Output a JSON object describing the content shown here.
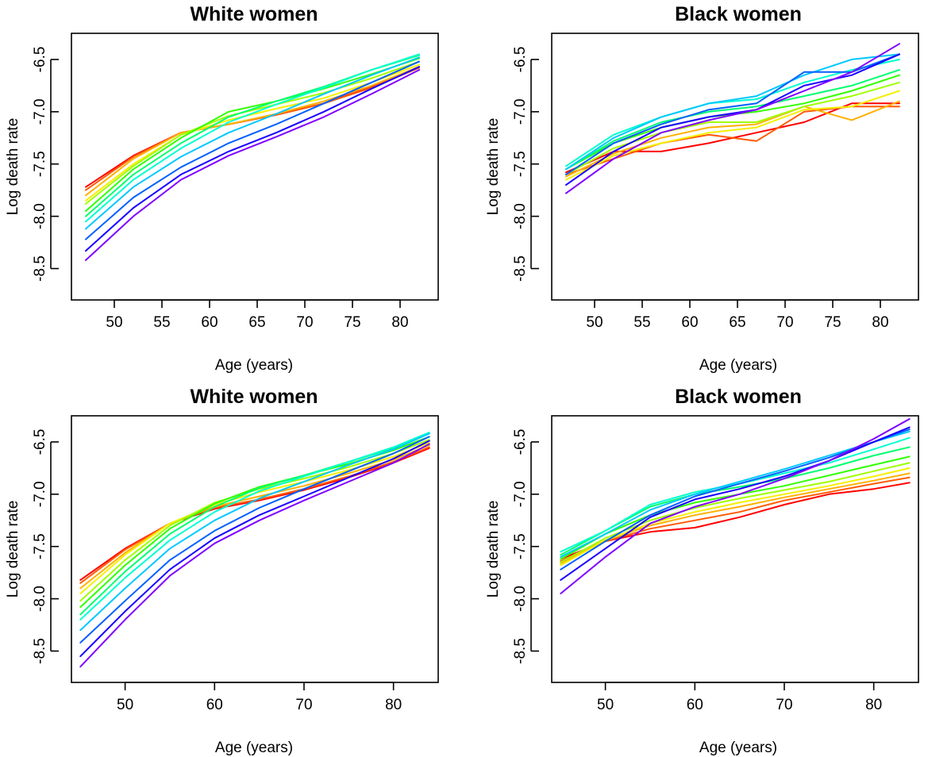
{
  "chart_data": [
    {
      "type": "line",
      "title": "White women",
      "xlabel": "Age (years)",
      "ylabel": "Log death rate",
      "xlim": [
        45.5,
        84
      ],
      "ylim": [
        -8.8,
        -6.25
      ],
      "xticks": [
        50,
        55,
        60,
        65,
        70,
        75,
        80
      ],
      "xtick_labels": [
        "50",
        "55",
        "60",
        "65",
        "70",
        "75",
        "80"
      ],
      "yticks": [
        -8.5,
        -8.0,
        -7.5,
        -7.0,
        -6.5
      ],
      "ytick_labels": [
        "-8.5",
        "-8.0",
        "-7.5",
        "-7.0",
        "-6.5"
      ],
      "grid": false,
      "colors": [
        "#ff0000",
        "#ff5a00",
        "#ffb000",
        "#f5f000",
        "#a0ff00",
        "#30ff00",
        "#00ff70",
        "#00ffd0",
        "#00c8ff",
        "#0060ff",
        "#1a00ff",
        "#8000ff"
      ],
      "x": [
        47,
        52,
        57,
        62,
        67,
        72,
        77,
        82
      ],
      "series": [
        {
          "values": [
            -7.72,
            -7.42,
            -7.2,
            -7.12,
            -7.03,
            -6.92,
            -6.76,
            -6.58
          ]
        },
        {
          "values": [
            -7.75,
            -7.43,
            -7.2,
            -7.12,
            -7.03,
            -6.92,
            -6.77,
            -6.58
          ]
        },
        {
          "values": [
            -7.8,
            -7.45,
            -7.2,
            -7.12,
            -7.02,
            -6.9,
            -6.75,
            -6.57
          ]
        },
        {
          "values": [
            -7.85,
            -7.5,
            -7.22,
            -7.08,
            -6.97,
            -6.87,
            -6.72,
            -6.55
          ]
        },
        {
          "values": [
            -7.88,
            -7.52,
            -7.22,
            -7.04,
            -6.93,
            -6.82,
            -6.68,
            -6.52
          ]
        },
        {
          "values": [
            -7.95,
            -7.55,
            -7.25,
            -7.0,
            -6.9,
            -6.78,
            -6.64,
            -6.49
          ]
        },
        {
          "values": [
            -8.0,
            -7.6,
            -7.3,
            -7.05,
            -6.9,
            -6.76,
            -6.6,
            -6.46
          ]
        },
        {
          "values": [
            -8.05,
            -7.65,
            -7.35,
            -7.1,
            -6.93,
            -6.77,
            -6.6,
            -6.45
          ]
        },
        {
          "values": [
            -8.12,
            -7.72,
            -7.43,
            -7.2,
            -7.02,
            -6.83,
            -6.65,
            -6.48
          ]
        },
        {
          "values": [
            -8.22,
            -7.82,
            -7.53,
            -7.3,
            -7.12,
            -6.92,
            -6.72,
            -6.52
          ]
        },
        {
          "values": [
            -8.33,
            -7.92,
            -7.6,
            -7.38,
            -7.2,
            -7.0,
            -6.78,
            -6.57
          ]
        },
        {
          "values": [
            -8.42,
            -8.0,
            -7.65,
            -7.42,
            -7.24,
            -7.05,
            -6.83,
            -6.6
          ]
        }
      ]
    },
    {
      "type": "line",
      "title": "Black women",
      "xlabel": "Age (years)",
      "ylabel": "Log death rate",
      "xlim": [
        45.5,
        84
      ],
      "ylim": [
        -8.8,
        -6.25
      ],
      "xticks": [
        50,
        55,
        60,
        65,
        70,
        75,
        80
      ],
      "xtick_labels": [
        "50",
        "55",
        "60",
        "65",
        "70",
        "75",
        "80"
      ],
      "yticks": [
        -8.5,
        -8.0,
        -7.5,
        -7.0,
        -6.5
      ],
      "ytick_labels": [
        "-8.5",
        "-8.0",
        "-7.5",
        "-7.0",
        "-6.5"
      ],
      "grid": false,
      "colors": [
        "#ff0000",
        "#ff5a00",
        "#ffb000",
        "#f5f000",
        "#a0ff00",
        "#30ff00",
        "#00ff70",
        "#00ffd0",
        "#00c8ff",
        "#0060ff",
        "#1a00ff",
        "#8000ff"
      ],
      "x": [
        47,
        52,
        57,
        62,
        67,
        72,
        77,
        82
      ],
      "series": [
        {
          "values": [
            -7.58,
            -7.38,
            -7.38,
            -7.3,
            -7.2,
            -7.1,
            -6.92,
            -6.92
          ]
        },
        {
          "values": [
            -7.6,
            -7.45,
            -7.3,
            -7.22,
            -7.28,
            -7.0,
            -6.95,
            -6.95
          ]
        },
        {
          "values": [
            -7.62,
            -7.4,
            -7.25,
            -7.15,
            -7.12,
            -6.95,
            -7.08,
            -6.9
          ]
        },
        {
          "values": [
            -7.65,
            -7.42,
            -7.3,
            -7.2,
            -7.15,
            -6.98,
            -6.95,
            -6.8
          ]
        },
        {
          "values": [
            -7.6,
            -7.35,
            -7.2,
            -7.1,
            -7.1,
            -6.95,
            -6.85,
            -6.72
          ]
        },
        {
          "values": [
            -7.55,
            -7.3,
            -7.15,
            -7.05,
            -7.0,
            -6.92,
            -6.8,
            -6.65
          ]
        },
        {
          "values": [
            -7.55,
            -7.28,
            -7.1,
            -7.0,
            -6.95,
            -6.85,
            -6.75,
            -6.6
          ]
        },
        {
          "values": [
            -7.52,
            -7.22,
            -7.05,
            -6.92,
            -6.88,
            -6.72,
            -6.6,
            -6.5
          ]
        },
        {
          "values": [
            -7.55,
            -7.25,
            -7.05,
            -6.92,
            -6.85,
            -6.65,
            -6.5,
            -6.45
          ]
        },
        {
          "values": [
            -7.6,
            -7.3,
            -7.12,
            -6.98,
            -6.92,
            -6.62,
            -6.62,
            -6.45
          ]
        },
        {
          "values": [
            -7.7,
            -7.38,
            -7.15,
            -7.05,
            -6.98,
            -6.75,
            -6.65,
            -6.45
          ]
        },
        {
          "values": [
            -7.78,
            -7.45,
            -7.2,
            -7.08,
            -6.98,
            -6.8,
            -6.62,
            -6.35
          ]
        }
      ]
    },
    {
      "type": "line",
      "title": "White women",
      "xlabel": "Age (years)",
      "ylabel": "Log death rate",
      "xlim": [
        44,
        85
      ],
      "ylim": [
        -8.8,
        -6.25
      ],
      "xticks": [
        50,
        60,
        70,
        80
      ],
      "xtick_labels": [
        "50",
        "60",
        "70",
        "80"
      ],
      "yticks": [
        -8.5,
        -8.0,
        -7.5,
        -7.0,
        -6.5
      ],
      "ytick_labels": [
        "-8.5",
        "-8.0",
        "-7.5",
        "-7.0",
        "-6.5"
      ],
      "grid": false,
      "colors": [
        "#ff0000",
        "#ff5a00",
        "#ffb000",
        "#f5f000",
        "#a0ff00",
        "#30ff00",
        "#00ff70",
        "#00ffd0",
        "#00c8ff",
        "#0060ff",
        "#1a00ff",
        "#8000ff"
      ],
      "x": [
        45,
        50,
        55,
        60,
        65,
        70,
        75,
        80,
        84
      ],
      "series": [
        {
          "values": [
            -7.82,
            -7.52,
            -7.28,
            -7.14,
            -7.06,
            -6.96,
            -6.84,
            -6.7,
            -6.56
          ]
        },
        {
          "values": [
            -7.85,
            -7.53,
            -7.28,
            -7.13,
            -7.05,
            -6.95,
            -6.83,
            -6.69,
            -6.55
          ]
        },
        {
          "values": [
            -7.9,
            -7.56,
            -7.28,
            -7.12,
            -7.02,
            -6.92,
            -6.8,
            -6.67,
            -6.53
          ]
        },
        {
          "values": [
            -7.95,
            -7.58,
            -7.28,
            -7.1,
            -6.98,
            -6.88,
            -6.77,
            -6.64,
            -6.51
          ]
        },
        {
          "values": [
            -8.02,
            -7.63,
            -7.3,
            -7.08,
            -6.95,
            -6.85,
            -6.74,
            -6.61,
            -6.48
          ]
        },
        {
          "values": [
            -8.08,
            -7.68,
            -7.33,
            -7.09,
            -6.93,
            -6.82,
            -6.71,
            -6.58,
            -6.45
          ]
        },
        {
          "values": [
            -8.15,
            -7.74,
            -7.38,
            -7.12,
            -6.94,
            -6.82,
            -6.69,
            -6.56,
            -6.42
          ]
        },
        {
          "values": [
            -8.2,
            -7.8,
            -7.44,
            -7.17,
            -6.97,
            -6.83,
            -6.69,
            -6.55,
            -6.41
          ]
        },
        {
          "values": [
            -8.3,
            -7.9,
            -7.52,
            -7.25,
            -7.04,
            -6.88,
            -6.72,
            -6.57,
            -6.42
          ]
        },
        {
          "values": [
            -8.42,
            -8.02,
            -7.63,
            -7.35,
            -7.13,
            -6.95,
            -6.78,
            -6.61,
            -6.45
          ]
        },
        {
          "values": [
            -8.55,
            -8.12,
            -7.72,
            -7.42,
            -7.2,
            -7.02,
            -6.84,
            -6.66,
            -6.49
          ]
        },
        {
          "values": [
            -8.65,
            -8.2,
            -7.78,
            -7.47,
            -7.25,
            -7.06,
            -6.88,
            -6.7,
            -6.52
          ]
        }
      ]
    },
    {
      "type": "line",
      "title": "Black women",
      "xlabel": "Age (years)",
      "ylabel": "Log death rate",
      "xlim": [
        44,
        85
      ],
      "ylim": [
        -8.8,
        -6.25
      ],
      "xticks": [
        50,
        60,
        70,
        80
      ],
      "xtick_labels": [
        "50",
        "60",
        "70",
        "80"
      ],
      "yticks": [
        -8.5,
        -8.0,
        -7.5,
        -7.0,
        -6.5
      ],
      "ytick_labels": [
        "-8.5",
        "-8.0",
        "-7.5",
        "-7.0",
        "-6.5"
      ],
      "grid": false,
      "colors": [
        "#ff0000",
        "#ff5a00",
        "#ffb000",
        "#f5f000",
        "#a0ff00",
        "#30ff00",
        "#00ff70",
        "#00ffd0",
        "#00c8ff",
        "#0060ff",
        "#1a00ff",
        "#8000ff"
      ],
      "x": [
        45,
        50,
        55,
        60,
        65,
        70,
        75,
        80,
        84
      ],
      "series": [
        {
          "values": [
            -7.62,
            -7.45,
            -7.36,
            -7.32,
            -7.22,
            -7.1,
            -7.0,
            -6.95,
            -6.89
          ]
        },
        {
          "values": [
            -7.64,
            -7.45,
            -7.33,
            -7.25,
            -7.17,
            -7.06,
            -6.98,
            -6.9,
            -6.84
          ]
        },
        {
          "values": [
            -7.66,
            -7.44,
            -7.3,
            -7.2,
            -7.12,
            -7.03,
            -6.95,
            -6.87,
            -6.8
          ]
        },
        {
          "values": [
            -7.68,
            -7.44,
            -7.28,
            -7.17,
            -7.08,
            -7.0,
            -6.92,
            -6.83,
            -6.75
          ]
        },
        {
          "values": [
            -7.65,
            -7.42,
            -7.25,
            -7.13,
            -7.04,
            -6.96,
            -6.88,
            -6.78,
            -6.7
          ]
        },
        {
          "values": [
            -7.62,
            -7.38,
            -7.2,
            -7.08,
            -7.0,
            -6.92,
            -6.82,
            -6.72,
            -6.64
          ]
        },
        {
          "values": [
            -7.58,
            -7.35,
            -7.12,
            -7.0,
            -6.93,
            -6.85,
            -6.75,
            -6.63,
            -6.55
          ]
        },
        {
          "values": [
            -7.55,
            -7.35,
            -7.1,
            -6.98,
            -6.9,
            -6.8,
            -6.7,
            -6.57,
            -6.46
          ]
        },
        {
          "values": [
            -7.6,
            -7.38,
            -7.15,
            -7.0,
            -6.88,
            -6.76,
            -6.63,
            -6.5,
            -6.4
          ]
        },
        {
          "values": [
            -7.72,
            -7.45,
            -7.2,
            -7.02,
            -6.9,
            -6.78,
            -6.65,
            -6.5,
            -6.38
          ]
        },
        {
          "values": [
            -7.82,
            -7.52,
            -7.22,
            -7.05,
            -6.95,
            -6.83,
            -6.68,
            -6.5,
            -6.36
          ]
        },
        {
          "values": [
            -7.95,
            -7.6,
            -7.28,
            -7.12,
            -7.0,
            -6.85,
            -6.68,
            -6.47,
            -6.28
          ]
        }
      ]
    }
  ]
}
